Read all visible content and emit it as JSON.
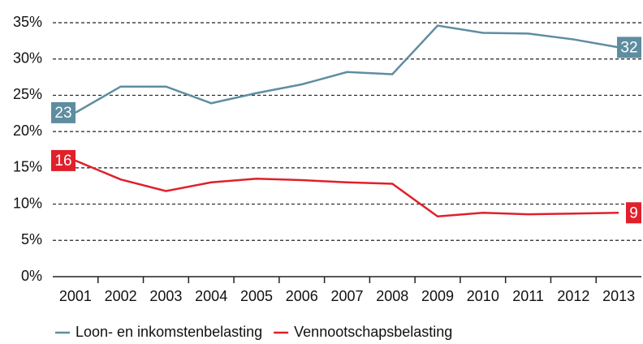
{
  "chart_data": {
    "type": "line",
    "categories": [
      "2001",
      "2002",
      "2003",
      "2004",
      "2005",
      "2006",
      "2007",
      "2008",
      "2009",
      "2010",
      "2011",
      "2012",
      "2013"
    ],
    "series": [
      {
        "name": "Loon- en inkomstenbelasting",
        "color": "#5e8da0",
        "values": [
          22.6,
          26.2,
          26.2,
          23.9,
          25.3,
          26.5,
          28.2,
          27.9,
          34.6,
          33.6,
          33.5,
          32.7,
          31.6
        ],
        "value_labels": [
          "23",
          null,
          null,
          null,
          null,
          null,
          null,
          null,
          null,
          null,
          null,
          null,
          "32"
        ]
      },
      {
        "name": "Vennootschapsbelasting",
        "color": "#e0202a",
        "values": [
          16.0,
          13.4,
          11.8,
          13.0,
          13.5,
          13.3,
          13.0,
          12.8,
          8.3,
          8.8,
          8.6,
          8.7,
          8.8
        ],
        "value_labels": [
          "16",
          null,
          null,
          null,
          null,
          null,
          null,
          null,
          null,
          null,
          null,
          null,
          "9"
        ]
      }
    ],
    "ylim": [
      0,
      35
    ],
    "yticks": [
      {
        "value": 0,
        "label": "0%"
      },
      {
        "value": 5,
        "label": "5%"
      },
      {
        "value": 10,
        "label": "10%"
      },
      {
        "value": 15,
        "label": "15%"
      },
      {
        "value": 20,
        "label": "20%"
      },
      {
        "value": 25,
        "label": "25%"
      },
      {
        "value": 30,
        "label": "30%"
      },
      {
        "value": 35,
        "label": "35%"
      }
    ],
    "grid": true
  }
}
